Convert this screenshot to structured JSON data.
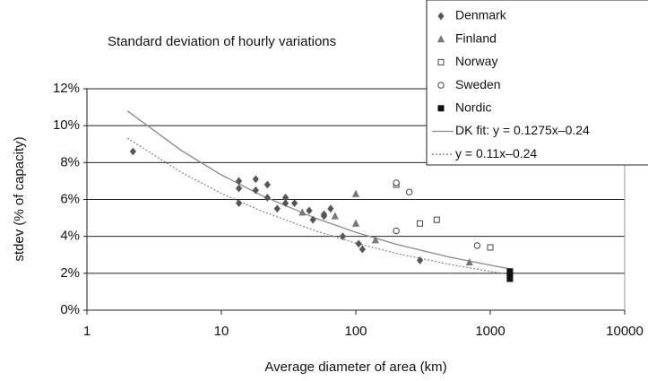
{
  "chart_data": {
    "type": "scatter",
    "title": "Standard deviation of hourly variations",
    "x_label": "Average diameter of area (km)",
    "y_label": "stdev (% of capacity)",
    "xscale": "log",
    "xlim": [
      1,
      10000
    ],
    "xticks": [
      1,
      10,
      100,
      1000,
      10000
    ],
    "ylim": [
      0,
      12
    ],
    "yticks": [
      {
        "value": 0,
        "label": "0%"
      },
      {
        "value": 2,
        "label": "2%"
      },
      {
        "value": 4,
        "label": "4%"
      },
      {
        "value": 6,
        "label": "6%"
      },
      {
        "value": 8,
        "label": "8%"
      },
      {
        "value": 10,
        "label": "10%"
      },
      {
        "value": 12,
        "label": "12%"
      }
    ],
    "grid": true,
    "legend": "top-right",
    "series": [
      {
        "name": "Denmark",
        "color": "#555555",
        "marker": "diamond",
        "x": [
          2.2,
          13.5,
          13.5,
          13.5,
          18,
          18,
          22,
          22,
          26,
          30,
          30,
          35,
          45,
          48,
          58,
          58,
          65,
          80,
          105,
          112,
          300
        ],
        "values": [
          8.6,
          7.0,
          6.6,
          5.8,
          7.1,
          6.5,
          6.8,
          6.1,
          5.5,
          6.1,
          5.8,
          5.8,
          5.4,
          4.9,
          5.2,
          5.1,
          5.5,
          4.0,
          3.6,
          3.3,
          2.7
        ]
      },
      {
        "name": "Finland",
        "color": "#777777",
        "marker": "triangle",
        "x": [
          40,
          70,
          100,
          100,
          140,
          700
        ],
        "values": [
          5.3,
          5.1,
          6.3,
          4.7,
          3.8,
          2.6
        ]
      },
      {
        "name": "Norway",
        "color": "#444444",
        "marker": "square-open",
        "x": [
          200,
          300,
          400,
          1000
        ],
        "values": [
          6.8,
          4.7,
          4.9,
          3.4
        ]
      },
      {
        "name": "Sweden",
        "color": "#444444",
        "marker": "circle-open",
        "x": [
          200,
          250,
          200,
          800
        ],
        "values": [
          6.9,
          6.4,
          4.3,
          3.5
        ]
      },
      {
        "name": "Nordic",
        "color": "#111111",
        "marker": "square",
        "x": [
          1400,
          1400,
          1400
        ],
        "values": [
          2.1,
          1.9,
          1.7
        ]
      },
      {
        "name": "DK fit: y = 0.1275x–0.24",
        "color": "#888888",
        "marker": "line",
        "line_style": "solid",
        "x": [
          2,
          5,
          10,
          20,
          50,
          100,
          200,
          500,
          1000,
          1400
        ],
        "values": [
          10.8,
          8.67,
          7.33,
          6.21,
          4.99,
          4.22,
          3.57,
          2.87,
          2.44,
          2.24
        ]
      },
      {
        "name": "y = 0.11x–0.24",
        "color": "#888888",
        "marker": "line",
        "line_style": "dotted",
        "x": [
          2,
          5,
          10,
          20,
          50,
          100,
          200,
          500,
          1000,
          1400
        ],
        "values": [
          9.32,
          7.48,
          6.33,
          5.36,
          4.3,
          3.64,
          3.08,
          2.48,
          2.1,
          1.94
        ]
      }
    ]
  }
}
